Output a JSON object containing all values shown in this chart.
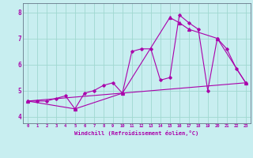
{
  "background_color": "#c8eef0",
  "grid_color": "#a0d8d0",
  "line_color": "#aa00aa",
  "xlim": [
    -0.5,
    23.5
  ],
  "ylim": [
    3.75,
    8.35
  ],
  "xtick_labels": [
    "0",
    "1",
    "2",
    "3",
    "4",
    "5",
    "6",
    "7",
    "8",
    "9",
    "10",
    "11",
    "12",
    "13",
    "14",
    "15",
    "16",
    "17",
    "18",
    "19",
    "20",
    "21",
    "22",
    "23"
  ],
  "ytick_values": [
    4,
    5,
    6,
    7,
    8
  ],
  "xlabel": "Windchill (Refroidissement éolien,°C)",
  "line1_x": [
    0,
    1,
    2,
    3,
    4,
    5,
    6,
    7,
    8,
    9,
    10,
    11,
    12,
    13,
    14,
    15,
    16,
    17,
    18,
    19,
    20,
    21,
    22,
    23
  ],
  "line1_y": [
    4.6,
    4.6,
    4.6,
    4.7,
    4.8,
    4.3,
    4.9,
    5.0,
    5.2,
    5.3,
    4.9,
    6.5,
    6.6,
    6.6,
    5.4,
    5.5,
    7.9,
    7.6,
    7.35,
    5.0,
    7.0,
    6.6,
    5.85,
    5.3
  ],
  "line2_x": [
    0,
    5,
    10,
    15,
    16,
    17,
    20,
    23
  ],
  "line2_y": [
    4.6,
    4.3,
    4.9,
    7.8,
    7.6,
    7.35,
    7.0,
    5.3
  ],
  "line3_x": [
    0,
    23
  ],
  "line3_y": [
    4.6,
    5.3
  ],
  "fig_width": 3.2,
  "fig_height": 2.0,
  "dpi": 100
}
